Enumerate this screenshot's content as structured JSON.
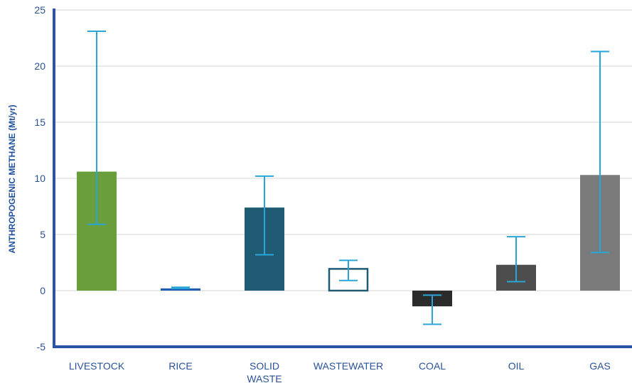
{
  "chart_data": {
    "type": "bar",
    "ylabel": "ANTHROPOGENIC METHANE (Mt/yr)",
    "ylim": [
      -5,
      25
    ],
    "yticks": [
      25,
      20,
      15,
      10,
      5,
      0,
      -5
    ],
    "grid": true,
    "categories": [
      {
        "lines": [
          "LIVESTOCK"
        ],
        "value": 10.6,
        "err_low": 5.9,
        "err_high": 23.1,
        "color": "#6a9e3c",
        "style": "filled"
      },
      {
        "lines": [
          "RICE"
        ],
        "value": 0.2,
        "err_low": 0.2,
        "err_high": 0.3,
        "color": "#1f5eb0",
        "style": "filled"
      },
      {
        "lines": [
          "SOLID",
          "WASTE"
        ],
        "value": 7.4,
        "err_low": 3.2,
        "err_high": 10.2,
        "color": "#1f5c73",
        "style": "filled"
      },
      {
        "lines": [
          "WASTEWATER"
        ],
        "value": 2.0,
        "err_low": 0.9,
        "err_high": 2.7,
        "color": "#1f5c73",
        "style": "outline"
      },
      {
        "lines": [
          "COAL"
        ],
        "value": -1.4,
        "err_low": -3.0,
        "err_high": -0.4,
        "color": "#2b2b2b",
        "style": "filled"
      },
      {
        "lines": [
          "OIL"
        ],
        "value": 2.3,
        "err_low": 0.8,
        "err_high": 4.8,
        "color": "#4d4d4d",
        "style": "filled"
      },
      {
        "lines": [
          "GAS"
        ],
        "value": 10.3,
        "err_low": 3.4,
        "err_high": 21.3,
        "color": "#7a7a7a",
        "style": "filled"
      }
    ],
    "colors": {
      "axis": "#2a53a3",
      "grid": "#d6d6d6",
      "error_bar": "#29a6d8",
      "text": "#2a5298"
    }
  }
}
